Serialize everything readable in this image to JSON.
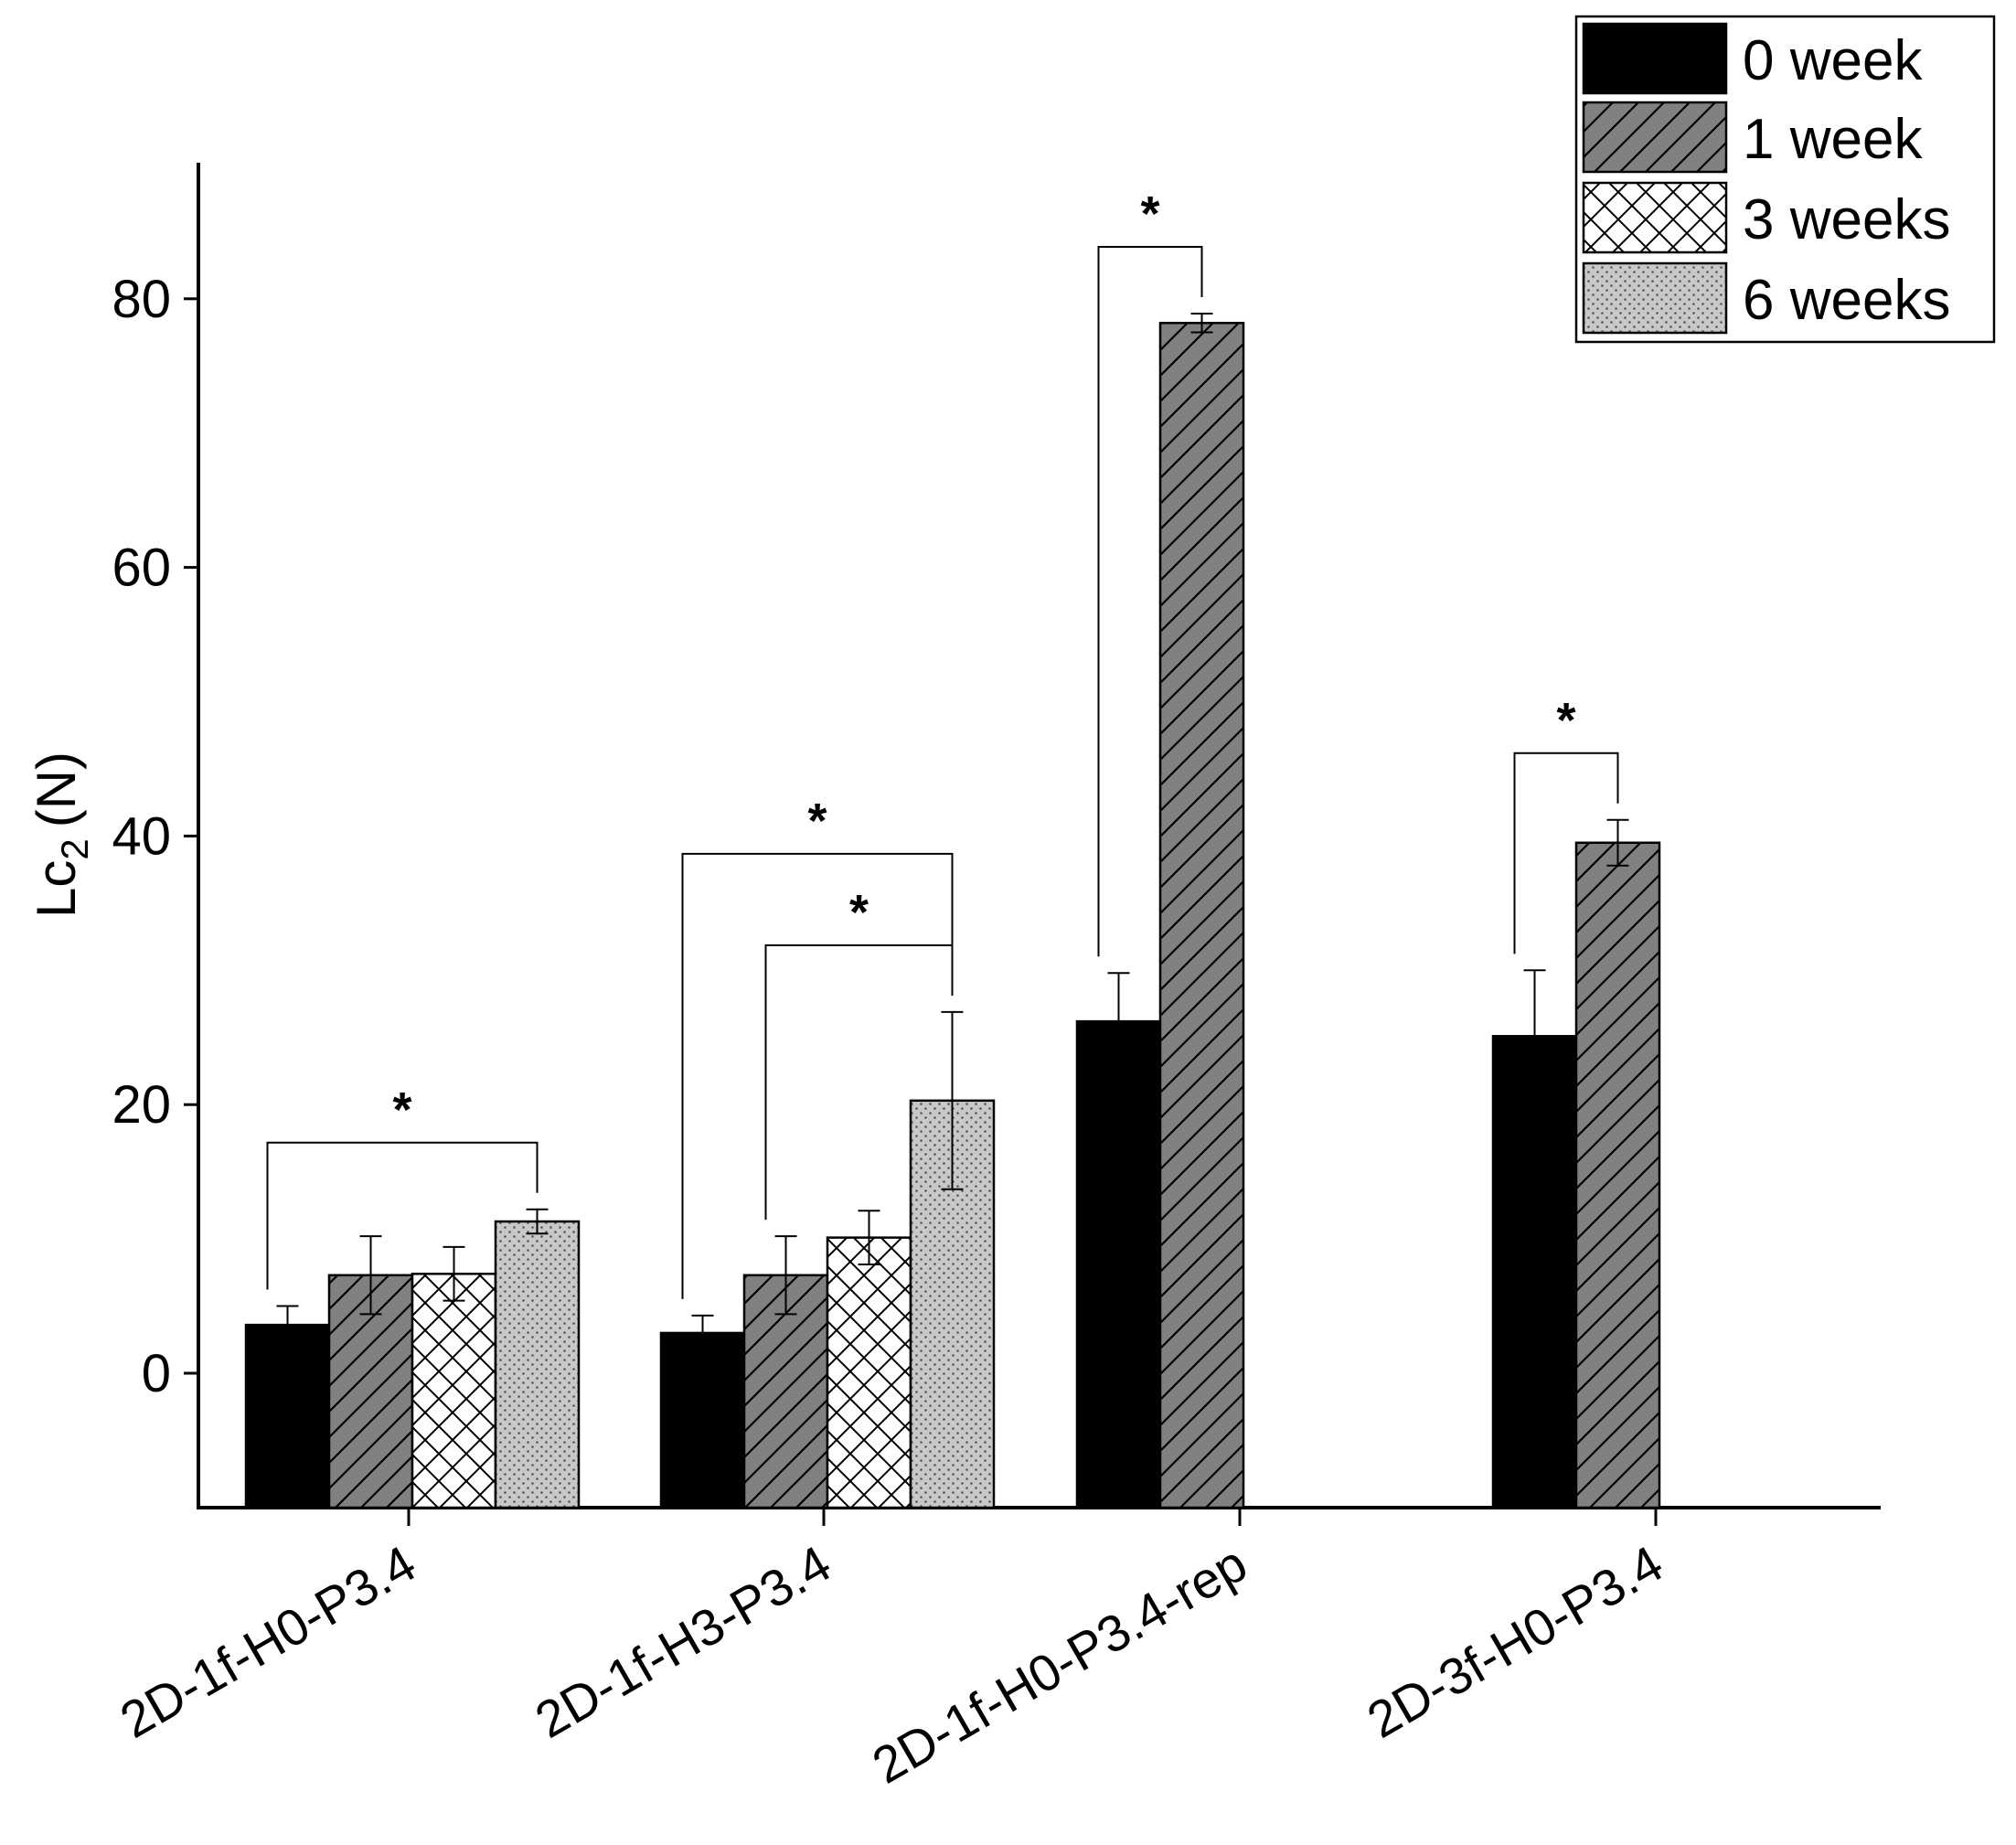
{
  "chart_data": {
    "type": "bar",
    "title": "",
    "xlabel": "",
    "ylabel": "Lc",
    "ylabel_subscript": "2",
    "ylabel_unit": "(N)",
    "ylim": [
      -10,
      90
    ],
    "yticks": [
      0,
      20,
      40,
      60,
      80
    ],
    "ytick_labels": [
      "0",
      "20",
      "40",
      "60",
      "80"
    ],
    "categories": [
      "2D-1f-H0-P3.4",
      "2D-1f-H3-P3.4",
      "2D-1f-H0-P3.4-rep",
      "2D-3f-H0-P3.4"
    ],
    "series": [
      {
        "name": "0 week",
        "pattern": "solid",
        "color": "#000000",
        "values": [
          3.6,
          3.0,
          26.2,
          25.1
        ],
        "errors": [
          1.4,
          1.3,
          3.6,
          4.9
        ]
      },
      {
        "name": "1 week",
        "pattern": "hatch",
        "color": "#808080",
        "values": [
          7.3,
          7.3,
          78.2,
          39.5
        ],
        "errors": [
          2.9,
          2.9,
          0.7,
          1.7
        ]
      },
      {
        "name": "3 weeks",
        "pattern": "cross",
        "color": "#ffffff",
        "values": [
          7.4,
          10.1,
          null,
          null
        ],
        "errors": [
          2.0,
          2.0,
          null,
          null
        ]
      },
      {
        "name": "6 weeks",
        "pattern": "dots",
        "color": "#c8c8c8",
        "values": [
          11.3,
          20.3,
          null,
          null
        ],
        "errors": [
          0.9,
          6.6,
          null,
          null
        ]
      }
    ],
    "legend_position": "top-right",
    "significance": [
      {
        "category": 0,
        "from_series": 0,
        "to_series": 3,
        "label": "*",
        "level": 1
      },
      {
        "category": 1,
        "from_series": 0,
        "to_series": 3,
        "label": "*",
        "level": 2
      },
      {
        "category": 1,
        "from_series": 1,
        "to_series": 3,
        "label": "*",
        "level": 1
      },
      {
        "category": 2,
        "from_series": 0,
        "to_series": 1,
        "label": "*",
        "level": 1
      },
      {
        "category": 3,
        "from_series": 0,
        "to_series": 1,
        "label": "*",
        "level": 1
      }
    ]
  }
}
